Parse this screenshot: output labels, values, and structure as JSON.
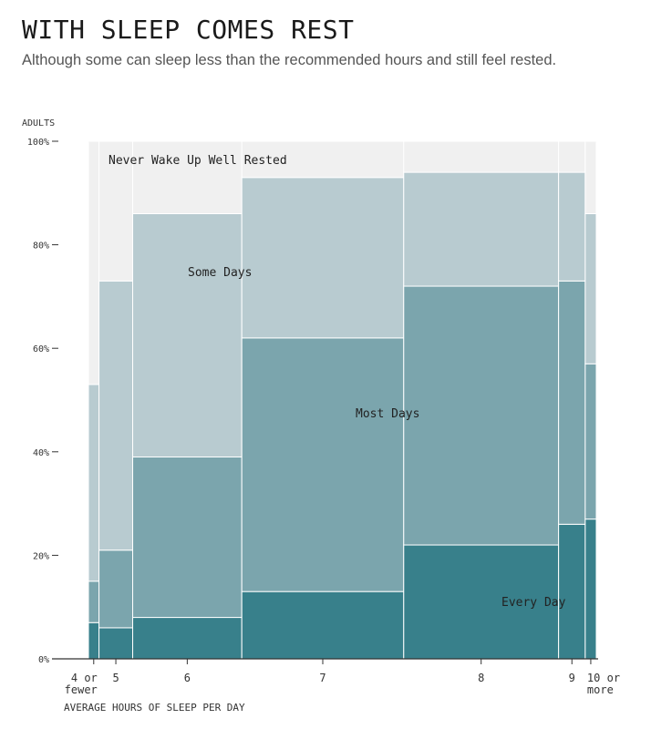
{
  "header": {
    "title": "WITH SLEEP COMES REST",
    "subtitle": "Although some can sleep less than the recommended hours and still feel rested."
  },
  "colors": {
    "never": "#f0f0f0",
    "some": "#b8cbd0",
    "most": "#7ba5ad",
    "every": "#38808b"
  },
  "chart_data": {
    "type": "mosaic",
    "ylabel": "ADULTS",
    "xlabel": "AVERAGE HOURS OF SLEEP PER DAY",
    "ylim": [
      0,
      100
    ],
    "y_ticks": [
      "0%",
      "20%",
      "40%",
      "60%",
      "80%",
      "100%"
    ],
    "grid": false,
    "categories": [
      {
        "label": [
          "4 or",
          "fewer"
        ],
        "share": 0.021,
        "every": 7,
        "most": 8,
        "some": 38,
        "never": 47
      },
      {
        "label": [
          "5"
        ],
        "share": 0.067,
        "every": 6,
        "most": 15,
        "some": 52,
        "never": 27
      },
      {
        "label": [
          "6"
        ],
        "share": 0.217,
        "every": 8,
        "most": 31,
        "some": 47,
        "never": 14
      },
      {
        "label": [
          "7"
        ],
        "share": 0.322,
        "every": 13,
        "most": 49,
        "some": 31,
        "never": 7
      },
      {
        "label": [
          "8"
        ],
        "share": 0.308,
        "every": 22,
        "most": 50,
        "some": 22,
        "never": 6
      },
      {
        "label": [
          "9"
        ],
        "share": 0.053,
        "every": 26,
        "most": 47,
        "some": 21,
        "never": 6
      },
      {
        "label": [
          "10 or",
          "more"
        ],
        "share": 0.022,
        "every": 27,
        "most": 30,
        "some": 29,
        "never": 14
      }
    ],
    "series": [
      {
        "key": "every",
        "name": "Every Day"
      },
      {
        "key": "most",
        "name": "Most Days"
      },
      {
        "key": "some",
        "name": "Some Days"
      },
      {
        "key": "never",
        "name": "Never Wake Up Well Rested"
      }
    ]
  }
}
